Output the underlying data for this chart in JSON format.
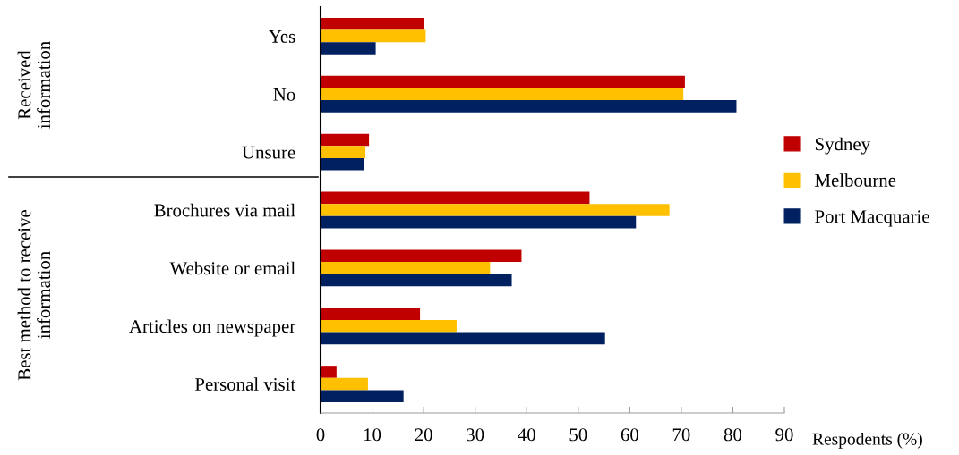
{
  "chart_data": {
    "type": "bar",
    "orientation": "horizontal",
    "xlabel": "Respodents (%)",
    "categories": [
      "Yes",
      "No",
      "Unsure",
      "Brochures via mail",
      "Website or email",
      "Articles on newspaper",
      "Personal visit"
    ],
    "series": [
      {
        "name": "Sydney",
        "color": "#c00000",
        "values": [
          20.0,
          70.7,
          9.4,
          52.2,
          39.0,
          19.3,
          3.1
        ]
      },
      {
        "name": "Melbourne",
        "color": "#ffc000",
        "values": [
          20.4,
          70.4,
          8.7,
          67.7,
          32.9,
          26.4,
          9.2
        ]
      },
      {
        "name": "Port Macquarie",
        "color": "#002060",
        "values": [
          10.7,
          80.7,
          8.4,
          61.2,
          37.1,
          55.2,
          16.1
        ]
      }
    ],
    "xlim": [
      0,
      90
    ],
    "xticks": [
      0,
      10,
      20,
      30,
      40,
      50,
      60,
      70,
      80,
      90
    ],
    "annotations": [
      "Received\ninformation",
      "Best method to receive\ninformation"
    ],
    "grid": false,
    "legend": "right"
  }
}
